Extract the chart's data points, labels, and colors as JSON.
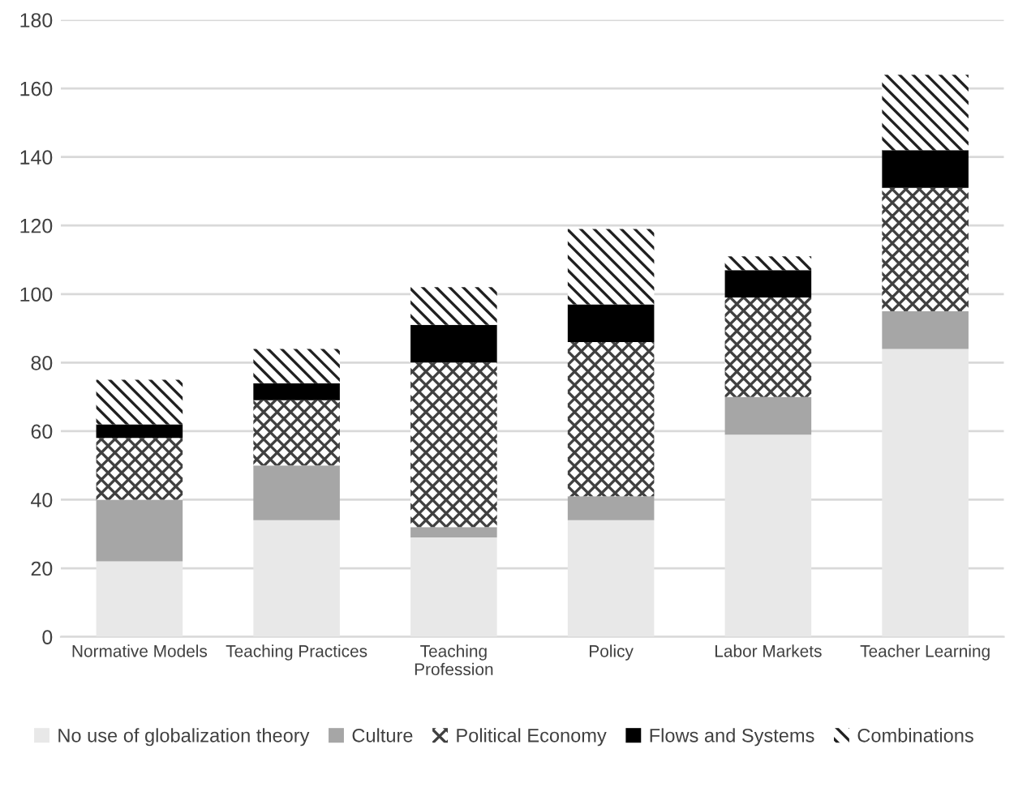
{
  "chart_data": {
    "type": "bar",
    "stacked": true,
    "categories": [
      "Normative Models",
      "Teaching Practices",
      "Teaching\nProfession",
      "Policy",
      "Labor Markets",
      "Teacher Learning"
    ],
    "series": [
      {
        "name": "No use of globalization theory",
        "color": "#e8e8e8",
        "values": [
          22,
          34,
          29,
          34,
          59,
          84
        ]
      },
      {
        "name": "Culture",
        "color": "#a6a6a6",
        "values": [
          18,
          16,
          3,
          7,
          11,
          11
        ]
      },
      {
        "name": "Political Economy",
        "color": "#404040",
        "values": [
          18,
          19,
          48,
          45,
          29,
          36
        ]
      },
      {
        "name": "Flows and Systems",
        "color": "#000000",
        "values": [
          4,
          5,
          11,
          11,
          8,
          11
        ]
      },
      {
        "name": "Combinations",
        "color": "#202020",
        "values": [
          13,
          10,
          11,
          22,
          4,
          22
        ]
      }
    ],
    "ylim": [
      0,
      180
    ],
    "yticks": [
      0,
      20,
      40,
      60,
      80,
      100,
      120,
      140,
      160,
      180
    ],
    "grid": "y",
    "legend": "bottom"
  }
}
